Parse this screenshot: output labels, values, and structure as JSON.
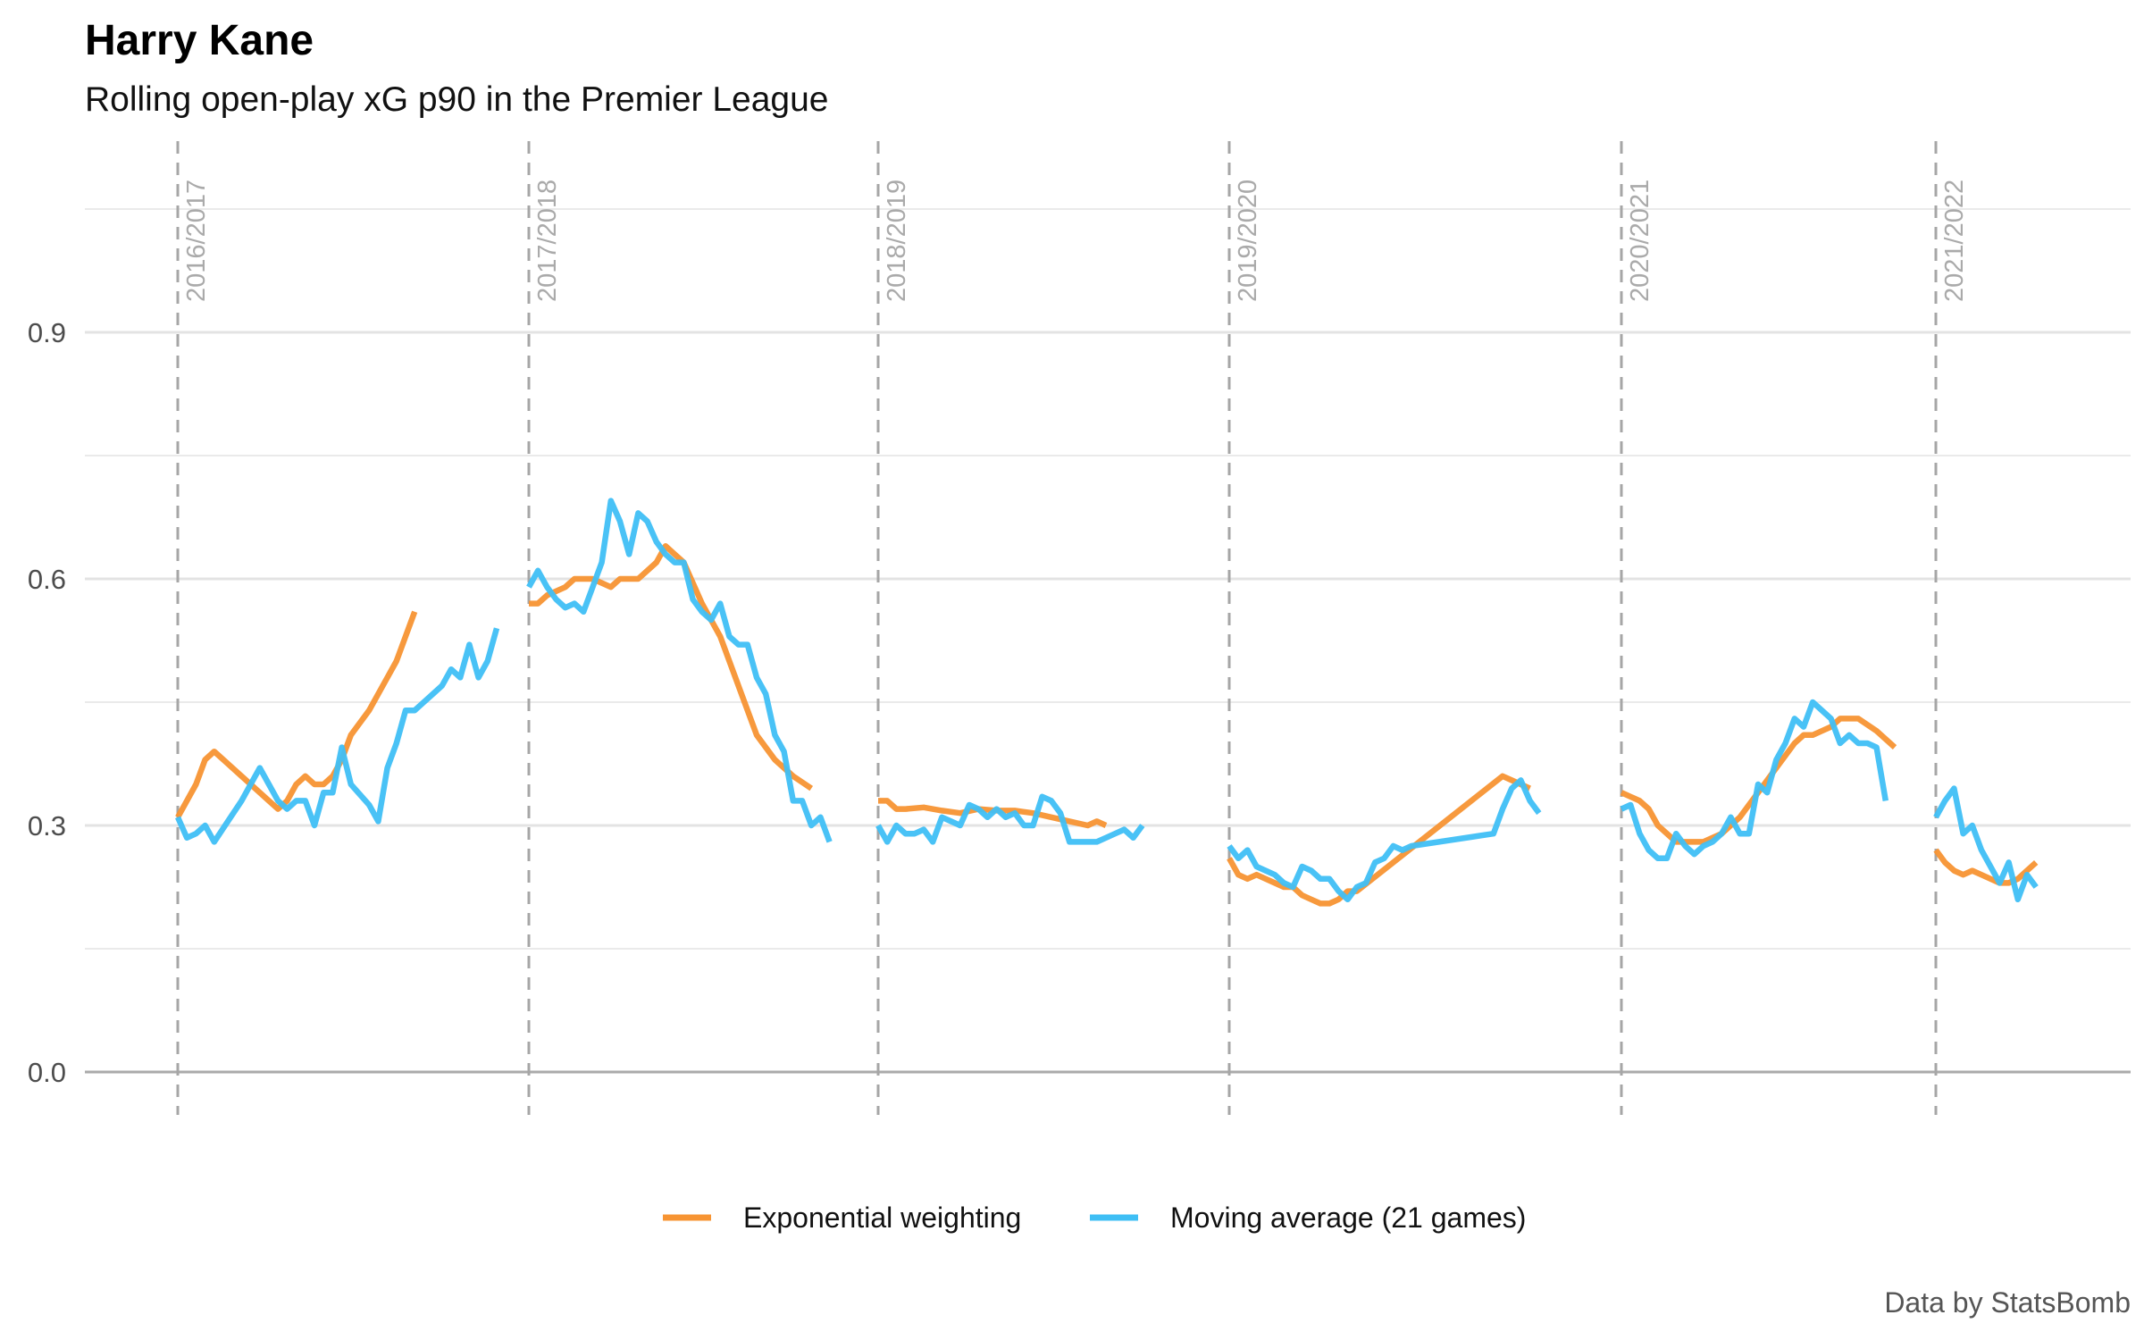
{
  "title": "Harry Kane",
  "subtitle": "Rolling open-play xG p90 in the Premier League",
  "caption": "Data by StatsBomb",
  "colors": {
    "exponential": "#f79433",
    "moving_average": "#3fbff5",
    "season_line": "#a6a6a6",
    "grid": "#e3e3e3",
    "baseline": "#aaaaaa",
    "season_label": "#aaaaaa"
  },
  "chart_data": {
    "type": "line",
    "y_ticks": [
      "0.0",
      "0.3",
      "0.6",
      "0.9"
    ],
    "ylim": [
      0,
      1.05
    ],
    "grid": true,
    "legend_position": "bottom",
    "seasons": [
      "2016/2017",
      "2017/2018",
      "2018/2019",
      "2019/2020",
      "2020/2021",
      "2021/2022"
    ],
    "series": [
      {
        "name": "Exponential weighting",
        "segments": [
          [
            [
              1,
              0.31
            ],
            [
              2,
              0.33
            ],
            [
              3,
              0.35
            ],
            [
              4,
              0.38
            ],
            [
              5,
              0.39
            ],
            [
              8,
              0.36
            ],
            [
              11,
              0.33
            ],
            [
              12,
              0.32
            ],
            [
              13,
              0.33
            ],
            [
              14,
              0.35
            ],
            [
              15,
              0.36
            ],
            [
              16,
              0.35
            ],
            [
              17,
              0.35
            ],
            [
              18,
              0.36
            ],
            [
              19,
              0.38
            ],
            [
              20,
              0.41
            ],
            [
              22,
              0.44
            ],
            [
              24,
              0.48
            ],
            [
              25,
              0.5
            ],
            [
              26,
              0.53
            ],
            [
              27,
              0.56
            ]
          ],
          [
            [
              1,
              0.57
            ],
            [
              2,
              0.57
            ],
            [
              3,
              0.58
            ],
            [
              5,
              0.59
            ],
            [
              6,
              0.6
            ],
            [
              7,
              0.6
            ],
            [
              8,
              0.6
            ],
            [
              10,
              0.59
            ],
            [
              11,
              0.6
            ],
            [
              13,
              0.6
            ],
            [
              15,
              0.62
            ],
            [
              16,
              0.64
            ],
            [
              17,
              0.63
            ],
            [
              18,
              0.62
            ],
            [
              20,
              0.57
            ],
            [
              22,
              0.53
            ],
            [
              24,
              0.47
            ],
            [
              26,
              0.41
            ],
            [
              28,
              0.38
            ],
            [
              30,
              0.36
            ],
            [
              32,
              0.345
            ]
          ],
          [
            [
              1,
              0.33
            ],
            [
              2,
              0.33
            ],
            [
              3,
              0.32
            ],
            [
              4,
              0.32
            ],
            [
              6,
              0.322
            ],
            [
              8,
              0.318
            ],
            [
              10,
              0.315
            ],
            [
              12,
              0.32
            ],
            [
              14,
              0.318
            ],
            [
              16,
              0.318
            ],
            [
              18,
              0.315
            ],
            [
              20,
              0.31
            ],
            [
              22,
              0.305
            ],
            [
              24,
              0.3
            ],
            [
              25,
              0.305
            ],
            [
              26,
              0.3
            ]
          ],
          [
            [
              1,
              0.26
            ],
            [
              2,
              0.24
            ],
            [
              3,
              0.235
            ],
            [
              4,
              0.24
            ],
            [
              5,
              0.235
            ],
            [
              6,
              0.23
            ],
            [
              7,
              0.225
            ],
            [
              8,
              0.225
            ],
            [
              9,
              0.215
            ],
            [
              10,
              0.21
            ],
            [
              11,
              0.205
            ],
            [
              12,
              0.205
            ],
            [
              13,
              0.21
            ],
            [
              14,
              0.22
            ],
            [
              15,
              0.22
            ],
            [
              31,
              0.36
            ],
            [
              32,
              0.355
            ],
            [
              33,
              0.35
            ],
            [
              34,
              0.345
            ]
          ],
          [
            [
              1,
              0.34
            ],
            [
              2,
              0.335
            ],
            [
              3,
              0.33
            ],
            [
              4,
              0.32
            ],
            [
              5,
              0.3
            ],
            [
              6,
              0.29
            ],
            [
              7,
              0.28
            ],
            [
              8,
              0.28
            ],
            [
              10,
              0.28
            ],
            [
              12,
              0.29
            ],
            [
              14,
              0.31
            ],
            [
              16,
              0.34
            ],
            [
              18,
              0.37
            ],
            [
              20,
              0.4
            ],
            [
              21,
              0.41
            ],
            [
              22,
              0.41
            ],
            [
              23,
              0.415
            ],
            [
              24,
              0.42
            ],
            [
              25,
              0.43
            ],
            [
              27,
              0.43
            ],
            [
              29,
              0.415
            ],
            [
              31,
              0.395
            ]
          ],
          [
            [
              1,
              0.27
            ],
            [
              2,
              0.255
            ],
            [
              3,
              0.245
            ],
            [
              4,
              0.24
            ],
            [
              5,
              0.245
            ],
            [
              6,
              0.24
            ],
            [
              7,
              0.235
            ],
            [
              8,
              0.23
            ],
            [
              9,
              0.23
            ],
            [
              10,
              0.235
            ],
            [
              11,
              0.245
            ],
            [
              12,
              0.255
            ]
          ]
        ]
      },
      {
        "name": "Moving average (21 games)",
        "segments": [
          [
            [
              1,
              0.31
            ],
            [
              2,
              0.285
            ],
            [
              3,
              0.29
            ],
            [
              4,
              0.3
            ],
            [
              5,
              0.28
            ],
            [
              8,
              0.33
            ],
            [
              10,
              0.37
            ],
            [
              11,
              0.35
            ],
            [
              12,
              0.33
            ],
            [
              13,
              0.32
            ],
            [
              14,
              0.33
            ],
            [
              15,
              0.33
            ],
            [
              16,
              0.3
            ],
            [
              17,
              0.34
            ],
            [
              18,
              0.34
            ],
            [
              19,
              0.395
            ],
            [
              20,
              0.35
            ],
            [
              22,
              0.325
            ],
            [
              23,
              0.305
            ],
            [
              24,
              0.37
            ],
            [
              25,
              0.4
            ],
            [
              26,
              0.44
            ],
            [
              27,
              0.44
            ],
            [
              28,
              0.45
            ],
            [
              29,
              0.46
            ],
            [
              30,
              0.47
            ],
            [
              31,
              0.49
            ],
            [
              32,
              0.48
            ],
            [
              33,
              0.52
            ],
            [
              34,
              0.48
            ],
            [
              35,
              0.5
            ],
            [
              36,
              0.54
            ]
          ],
          [
            [
              1,
              0.59
            ],
            [
              2,
              0.61
            ],
            [
              3,
              0.59
            ],
            [
              4,
              0.575
            ],
            [
              5,
              0.565
            ],
            [
              6,
              0.57
            ],
            [
              7,
              0.56
            ],
            [
              8,
              0.59
            ],
            [
              9,
              0.62
            ],
            [
              10,
              0.695
            ],
            [
              11,
              0.67
            ],
            [
              12,
              0.63
            ],
            [
              13,
              0.68
            ],
            [
              14,
              0.67
            ],
            [
              15,
              0.645
            ],
            [
              16,
              0.63
            ],
            [
              17,
              0.62
            ],
            [
              18,
              0.62
            ],
            [
              19,
              0.575
            ],
            [
              20,
              0.56
            ],
            [
              21,
              0.55
            ],
            [
              22,
              0.57
            ],
            [
              23,
              0.53
            ],
            [
              24,
              0.52
            ],
            [
              25,
              0.52
            ],
            [
              26,
              0.48
            ],
            [
              27,
              0.46
            ],
            [
              28,
              0.41
            ],
            [
              29,
              0.39
            ],
            [
              30,
              0.33
            ],
            [
              31,
              0.33
            ],
            [
              32,
              0.3
            ],
            [
              33,
              0.31
            ],
            [
              34,
              0.28
            ]
          ],
          [
            [
              1,
              0.3
            ],
            [
              2,
              0.28
            ],
            [
              3,
              0.3
            ],
            [
              4,
              0.29
            ],
            [
              5,
              0.29
            ],
            [
              6,
              0.295
            ],
            [
              7,
              0.28
            ],
            [
              8,
              0.31
            ],
            [
              9,
              0.305
            ],
            [
              10,
              0.3
            ],
            [
              11,
              0.325
            ],
            [
              12,
              0.32
            ],
            [
              13,
              0.31
            ],
            [
              14,
              0.32
            ],
            [
              15,
              0.31
            ],
            [
              16,
              0.315
            ],
            [
              17,
              0.3
            ],
            [
              18,
              0.3
            ],
            [
              19,
              0.335
            ],
            [
              20,
              0.33
            ],
            [
              21,
              0.315
            ],
            [
              22,
              0.28
            ],
            [
              25,
              0.28
            ],
            [
              26,
              0.285
            ],
            [
              27,
              0.29
            ],
            [
              28,
              0.295
            ],
            [
              29,
              0.285
            ],
            [
              30,
              0.3
            ]
          ],
          [
            [
              1,
              0.275
            ],
            [
              2,
              0.26
            ],
            [
              3,
              0.27
            ],
            [
              4,
              0.25
            ],
            [
              5,
              0.245
            ],
            [
              6,
              0.24
            ],
            [
              7,
              0.23
            ],
            [
              8,
              0.225
            ],
            [
              9,
              0.25
            ],
            [
              10,
              0.245
            ],
            [
              11,
              0.235
            ],
            [
              12,
              0.235
            ],
            [
              13,
              0.22
            ],
            [
              14,
              0.21
            ],
            [
              15,
              0.225
            ],
            [
              16,
              0.23
            ],
            [
              17,
              0.255
            ],
            [
              18,
              0.26
            ],
            [
              19,
              0.275
            ],
            [
              20,
              0.27
            ],
            [
              21,
              0.275
            ],
            [
              30,
              0.29
            ],
            [
              31,
              0.32
            ],
            [
              32,
              0.345
            ],
            [
              33,
              0.355
            ],
            [
              34,
              0.33
            ],
            [
              35,
              0.315
            ]
          ],
          [
            [
              1,
              0.32
            ],
            [
              2,
              0.325
            ],
            [
              3,
              0.29
            ],
            [
              4,
              0.27
            ],
            [
              5,
              0.26
            ],
            [
              6,
              0.26
            ],
            [
              7,
              0.29
            ],
            [
              8,
              0.275
            ],
            [
              9,
              0.265
            ],
            [
              10,
              0.275
            ],
            [
              11,
              0.28
            ],
            [
              12,
              0.29
            ],
            [
              13,
              0.31
            ],
            [
              14,
              0.29
            ],
            [
              15,
              0.29
            ],
            [
              16,
              0.35
            ],
            [
              17,
              0.34
            ],
            [
              18,
              0.38
            ],
            [
              19,
              0.4
            ],
            [
              20,
              0.43
            ],
            [
              21,
              0.42
            ],
            [
              22,
              0.45
            ],
            [
              23,
              0.44
            ],
            [
              24,
              0.43
            ],
            [
              25,
              0.4
            ],
            [
              26,
              0.41
            ],
            [
              27,
              0.4
            ],
            [
              28,
              0.4
            ],
            [
              29,
              0.395
            ],
            [
              30,
              0.33
            ]
          ],
          [
            [
              1,
              0.31
            ],
            [
              2,
              0.33
            ],
            [
              3,
              0.345
            ],
            [
              4,
              0.29
            ],
            [
              5,
              0.3
            ],
            [
              6,
              0.27
            ],
            [
              7,
              0.25
            ],
            [
              8,
              0.23
            ],
            [
              9,
              0.255
            ],
            [
              10,
              0.21
            ],
            [
              11,
              0.24
            ],
            [
              12,
              0.225
            ]
          ]
        ]
      }
    ]
  }
}
